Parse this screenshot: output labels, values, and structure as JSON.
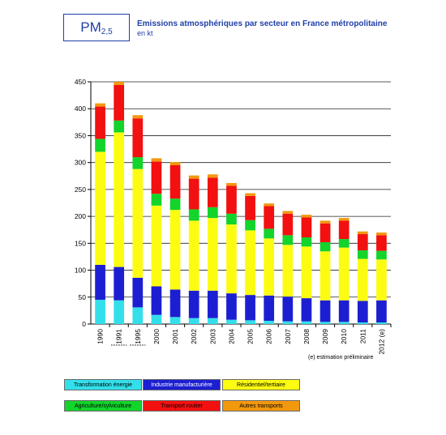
{
  "header": {
    "box_main": "PM",
    "box_sub": "2,5",
    "title": "Emissions atmosphériques par secteur en France métropolitaine",
    "unit": "en kt"
  },
  "note": "(e) estimation préliminaire",
  "chart_data": {
    "type": "bar",
    "stacked": true,
    "categories": [
      "1990",
      "1991",
      "1995",
      "2000",
      "2001",
      "2002",
      "2003",
      "2004",
      "2005",
      "2006",
      "2007",
      "2008",
      "2009",
      "2010",
      "2011",
      "2012 (e)"
    ],
    "ylim": [
      0,
      450
    ],
    "yticks": [
      0,
      50,
      100,
      150,
      200,
      250,
      300,
      350,
      400,
      450
    ],
    "grid": true,
    "legend_position": "bottom",
    "series": [
      {
        "name": "Transformation énergie",
        "color": "#33dfea",
        "values": [
          45,
          44,
          31,
          17,
          13,
          11,
          11,
          8,
          7,
          6,
          5,
          5,
          4,
          4,
          3,
          3
        ]
      },
      {
        "name": "Industrie manufacturière",
        "color": "#1c1fd1",
        "values": [
          65,
          62,
          55,
          53,
          51,
          51,
          51,
          49,
          47,
          47,
          46,
          43,
          40,
          40,
          40,
          41
        ]
      },
      {
        "name": "Résidentiel/tertiaire",
        "color": "#fcfc12",
        "values": [
          210,
          250,
          202,
          150,
          148,
          130,
          135,
          128,
          120,
          106,
          96,
          96,
          91,
          98,
          78,
          76
        ]
      },
      {
        "name": "Agriculture/sylviculture",
        "color": "#12d42b",
        "values": [
          24,
          22,
          22,
          22,
          21,
          21,
          20,
          20,
          19,
          18,
          18,
          17,
          17,
          16,
          16,
          16
        ]
      },
      {
        "name": "Transport routier",
        "color": "#f21010",
        "values": [
          60,
          66,
          72,
          60,
          62,
          57,
          55,
          52,
          45,
          42,
          40,
          37,
          35,
          34,
          30,
          29
        ]
      },
      {
        "name": "Autres transports",
        "color": "#f2980e",
        "values": [
          6,
          6,
          6,
          6,
          6,
          6,
          6,
          5,
          5,
          5,
          5,
          5,
          5,
          5,
          5,
          5
        ]
      }
    ]
  }
}
